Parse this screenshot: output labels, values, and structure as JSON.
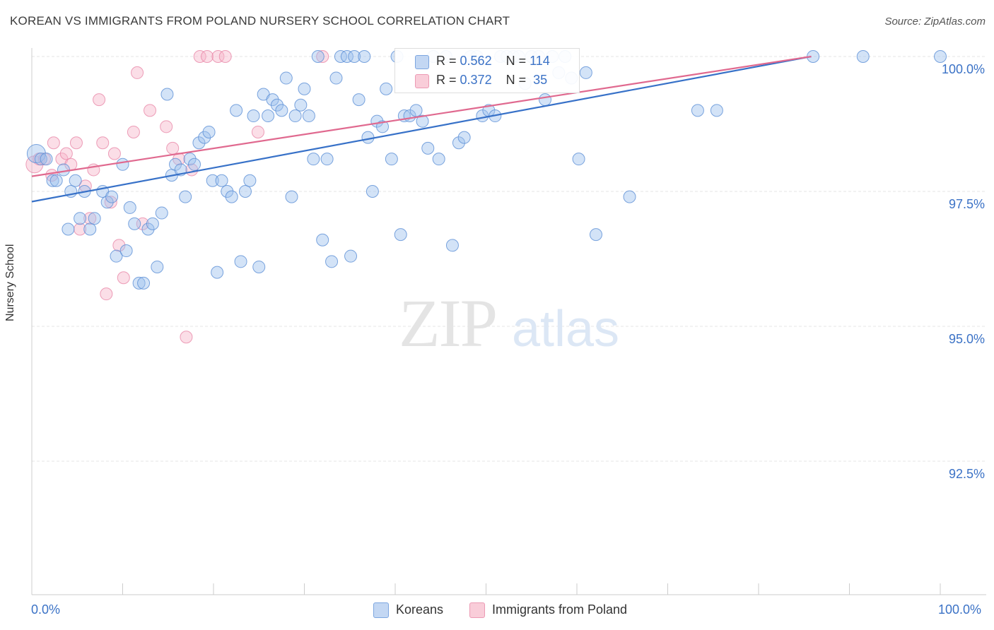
{
  "header": {
    "title": "KOREAN VS IMMIGRANTS FROM POLAND NURSERY SCHOOL CORRELATION CHART",
    "source": "Source: ZipAtlas.com"
  },
  "watermark": {
    "zip": "ZIP",
    "atlas": "atlas"
  },
  "legend": {
    "rows": [
      {
        "r_label": "R =",
        "r_value": "0.562",
        "n_label": "N =",
        "n_value": "114",
        "color": "#9dc0ee"
      },
      {
        "r_label": "R =",
        "r_value": "0.372",
        "n_label": "N =",
        "n_value": "35",
        "color": "#f6b6c9"
      }
    ]
  },
  "chart_data": {
    "type": "scatter",
    "title": "KOREAN VS IMMIGRANTS FROM POLAND NURSERY SCHOOL CORRELATION CHART",
    "xlabel": "",
    "ylabel": "Nursery School",
    "xlim": [
      0,
      100
    ],
    "ylim": [
      89.8,
      100.4
    ],
    "x_tick_labels": [
      "0.0%",
      "100.0%"
    ],
    "y_ticks": [
      {
        "value": 100.0,
        "label": "100.0%"
      },
      {
        "value": 97.5,
        "label": "97.5%"
      },
      {
        "value": 95.0,
        "label": "95.0%"
      },
      {
        "value": 92.5,
        "label": "92.5%"
      }
    ],
    "grid": true,
    "legend_position": "bottom-center",
    "series": [
      {
        "name": "Koreans",
        "color": "#9dc0ee",
        "stroke": "#5b8fd6",
        "line_color": "#3771c8",
        "trend": {
          "x0": 0,
          "y0": 97.31,
          "x1": 85.8,
          "y1": 100.0
        },
        "points": [
          [
            0.5,
            98.2
          ],
          [
            1.0,
            98.1
          ],
          [
            1.6,
            98.1
          ],
          [
            2.3,
            97.7
          ],
          [
            2.7,
            97.7
          ],
          [
            3.5,
            97.9
          ],
          [
            4.0,
            96.8
          ],
          [
            4.3,
            97.5
          ],
          [
            4.8,
            97.7
          ],
          [
            5.3,
            97.0
          ],
          [
            5.8,
            97.5
          ],
          [
            6.4,
            96.8
          ],
          [
            6.9,
            97.0
          ],
          [
            7.8,
            97.5
          ],
          [
            8.3,
            97.3
          ],
          [
            8.8,
            97.4
          ],
          [
            9.3,
            96.3
          ],
          [
            10.0,
            98.0
          ],
          [
            10.4,
            96.4
          ],
          [
            10.8,
            97.2
          ],
          [
            11.3,
            96.9
          ],
          [
            11.8,
            95.8
          ],
          [
            12.3,
            95.8
          ],
          [
            12.8,
            96.8
          ],
          [
            13.3,
            96.9
          ],
          [
            13.8,
            96.1
          ],
          [
            14.3,
            97.1
          ],
          [
            14.9,
            99.3
          ],
          [
            15.4,
            97.8
          ],
          [
            15.8,
            98.0
          ],
          [
            16.4,
            97.9
          ],
          [
            16.9,
            97.4
          ],
          [
            17.4,
            98.1
          ],
          [
            17.9,
            98.0
          ],
          [
            18.4,
            98.4
          ],
          [
            19.0,
            98.5
          ],
          [
            19.5,
            98.6
          ],
          [
            19.9,
            97.7
          ],
          [
            20.4,
            96.0
          ],
          [
            20.9,
            97.7
          ],
          [
            21.5,
            97.5
          ],
          [
            22.0,
            97.4
          ],
          [
            22.5,
            99.0
          ],
          [
            23.0,
            96.2
          ],
          [
            23.5,
            97.5
          ],
          [
            24.0,
            97.7
          ],
          [
            24.4,
            98.9
          ],
          [
            25.0,
            96.1
          ],
          [
            25.5,
            99.3
          ],
          [
            26.0,
            98.9
          ],
          [
            26.5,
            99.2
          ],
          [
            27.0,
            99.1
          ],
          [
            27.5,
            99.0
          ],
          [
            28.0,
            99.6
          ],
          [
            28.6,
            97.4
          ],
          [
            29.0,
            98.9
          ],
          [
            29.6,
            99.1
          ],
          [
            30.0,
            99.4
          ],
          [
            30.5,
            98.9
          ],
          [
            31.0,
            98.1
          ],
          [
            31.5,
            100.0
          ],
          [
            32.0,
            96.6
          ],
          [
            32.5,
            98.1
          ],
          [
            33.0,
            96.2
          ],
          [
            33.5,
            99.6
          ],
          [
            34.0,
            100.0
          ],
          [
            34.7,
            100.0
          ],
          [
            35.1,
            96.3
          ],
          [
            35.5,
            100.0
          ],
          [
            36.0,
            99.2
          ],
          [
            36.6,
            100.0
          ],
          [
            37.0,
            98.5
          ],
          [
            37.5,
            97.5
          ],
          [
            38.0,
            98.8
          ],
          [
            38.6,
            98.7
          ],
          [
            39.0,
            99.4
          ],
          [
            39.6,
            98.1
          ],
          [
            40.2,
            100.0
          ],
          [
            40.6,
            96.7
          ],
          [
            41.0,
            98.9
          ],
          [
            41.6,
            98.9
          ],
          [
            42.3,
            99.0
          ],
          [
            43.0,
            98.8
          ],
          [
            43.6,
            98.3
          ],
          [
            44.2,
            100.0
          ],
          [
            44.8,
            98.1
          ],
          [
            45.6,
            100.0
          ],
          [
            46.3,
            96.5
          ],
          [
            47.0,
            98.4
          ],
          [
            47.6,
            98.5
          ],
          [
            48.3,
            100.0
          ],
          [
            49.0,
            100.0
          ],
          [
            49.6,
            98.9
          ],
          [
            50.3,
            99.0
          ],
          [
            51.0,
            98.9
          ],
          [
            51.6,
            100.0
          ],
          [
            52.3,
            100.0
          ],
          [
            53.0,
            100.0
          ],
          [
            53.6,
            100.0
          ],
          [
            54.3,
            99.5
          ],
          [
            55.0,
            100.0
          ],
          [
            55.8,
            100.0
          ],
          [
            56.5,
            99.2
          ],
          [
            57.3,
            100.0
          ],
          [
            58.0,
            99.7
          ],
          [
            58.7,
            100.0
          ],
          [
            59.4,
            99.6
          ],
          [
            60.2,
            98.1
          ],
          [
            61.0,
            99.7
          ],
          [
            62.1,
            96.7
          ],
          [
            65.8,
            97.4
          ],
          [
            73.3,
            99.0
          ],
          [
            75.4,
            99.0
          ],
          [
            86.0,
            100.0
          ],
          [
            91.5,
            100.0
          ],
          [
            100.0,
            100.0
          ]
        ]
      },
      {
        "name": "Immigrants from Poland",
        "color": "#f6b6c9",
        "stroke": "#e887a7",
        "line_color": "#e0698f",
        "trend": {
          "x0": 0,
          "y0": 97.78,
          "x1": 85.8,
          "y1": 100.0
        },
        "points": [
          [
            0.3,
            98.0
          ],
          [
            0.8,
            98.1
          ],
          [
            1.4,
            98.1
          ],
          [
            2.2,
            97.8
          ],
          [
            2.4,
            98.4
          ],
          [
            3.3,
            98.1
          ],
          [
            3.8,
            98.2
          ],
          [
            4.3,
            98.0
          ],
          [
            4.9,
            98.4
          ],
          [
            5.3,
            96.8
          ],
          [
            5.9,
            97.6
          ],
          [
            6.4,
            97.0
          ],
          [
            6.8,
            97.9
          ],
          [
            7.4,
            99.2
          ],
          [
            7.8,
            98.4
          ],
          [
            8.2,
            95.6
          ],
          [
            8.7,
            97.3
          ],
          [
            9.1,
            98.2
          ],
          [
            9.6,
            96.5
          ],
          [
            10.1,
            95.9
          ],
          [
            11.2,
            98.6
          ],
          [
            11.6,
            99.7
          ],
          [
            12.2,
            96.9
          ],
          [
            13.0,
            99.0
          ],
          [
            14.8,
            98.7
          ],
          [
            15.5,
            98.3
          ],
          [
            16.2,
            98.1
          ],
          [
            17.0,
            94.8
          ],
          [
            17.6,
            97.9
          ],
          [
            18.5,
            100.0
          ],
          [
            19.3,
            100.0
          ],
          [
            20.5,
            100.0
          ],
          [
            21.3,
            100.0
          ],
          [
            24.9,
            98.6
          ],
          [
            32.0,
            100.0
          ]
        ]
      }
    ]
  },
  "bottom_legend": {
    "koreans": "Koreans",
    "poland": "Immigrants from Poland"
  }
}
